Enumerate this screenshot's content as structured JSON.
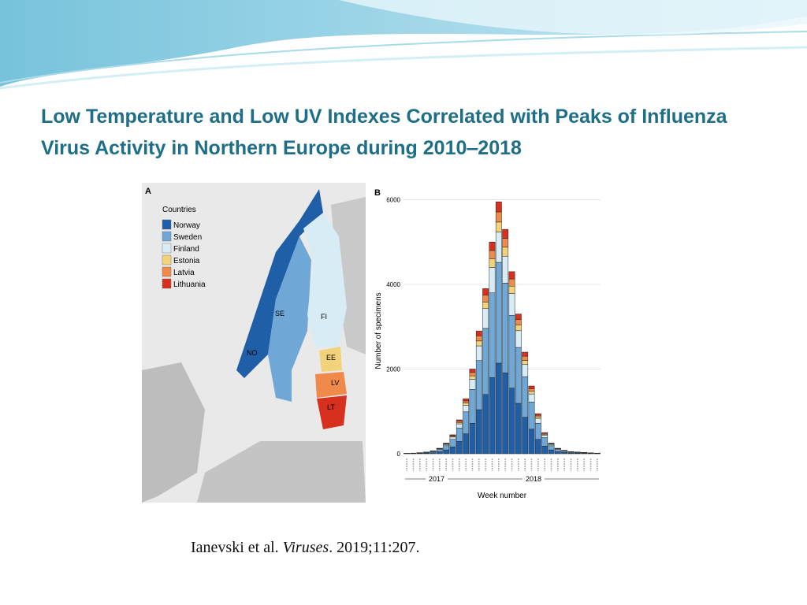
{
  "title": "Low Temperature and Low UV Indexes Correlated with Peaks of Influenza Virus Activity in Northern Europe during 2010‒2018",
  "citation": {
    "authors": "Ianevski et al.",
    "journal": "Viruses",
    "details": ". 2019;11:207."
  },
  "map": {
    "panel": "A",
    "legend_title": "Countries",
    "labels": [
      "NO",
      "SE",
      "FI",
      "EE",
      "LV",
      "LT"
    ]
  },
  "chart_data": {
    "type": "bar",
    "stacked": true,
    "panel": "B",
    "ylabel": "Number of specimens",
    "xlabel": "Week number",
    "years": [
      "2017",
      "2018"
    ],
    "ylim": [
      0,
      6200
    ],
    "yticks": [
      0,
      2000,
      4000,
      6000
    ],
    "grid": true,
    "series": [
      {
        "name": "Norway",
        "color": "#1f5fa8",
        "values": [
          4,
          5,
          9,
          14,
          25,
          47,
          90,
          160,
          290,
          470,
          720,
          1040,
          1400,
          1800,
          2140,
          1910,
          1550,
          1190,
          860,
          580,
          340,
          180,
          90,
          47,
          29,
          18,
          14,
          11,
          7,
          5
        ]
      },
      {
        "name": "Sweden",
        "color": "#6fa8d6",
        "values": [
          4,
          6,
          10,
          16,
          28,
          52,
          100,
          180,
          320,
          520,
          800,
          1160,
          1560,
          2000,
          2380,
          2120,
          1720,
          1320,
          960,
          640,
          380,
          200,
          100,
          52,
          32,
          20,
          16,
          12,
          8,
          6
        ]
      },
      {
        "name": "Finland",
        "color": "#d8ecf5",
        "values": [
          1,
          2,
          3,
          5,
          8,
          16,
          30,
          54,
          96,
          156,
          240,
          348,
          468,
          600,
          714,
          636,
          516,
          396,
          288,
          192,
          114,
          60,
          30,
          16,
          10,
          6,
          5,
          4,
          2,
          2
        ]
      },
      {
        "name": "Estonia",
        "color": "#f2d27a",
        "values": [
          0,
          1,
          1,
          2,
          3,
          5,
          10,
          18,
          32,
          52,
          80,
          116,
          156,
          200,
          238,
          212,
          172,
          132,
          96,
          64,
          38,
          20,
          10,
          5,
          3,
          2,
          2,
          1,
          1,
          1
        ]
      },
      {
        "name": "Latvia",
        "color": "#ef8a4a",
        "values": [
          0,
          0,
          1,
          1,
          3,
          5,
          10,
          18,
          30,
          50,
          80,
          120,
          160,
          200,
          240,
          210,
          170,
          130,
          100,
          60,
          36,
          20,
          10,
          5,
          3,
          2,
          1,
          1,
          1,
          0
        ]
      },
      {
        "name": "Lithuania",
        "color": "#d7301f",
        "values": [
          1,
          1,
          1,
          2,
          3,
          5,
          10,
          18,
          32,
          52,
          80,
          116,
          156,
          200,
          238,
          212,
          172,
          132,
          96,
          64,
          38,
          20,
          10,
          5,
          3,
          2,
          2,
          1,
          1,
          1
        ]
      }
    ]
  }
}
